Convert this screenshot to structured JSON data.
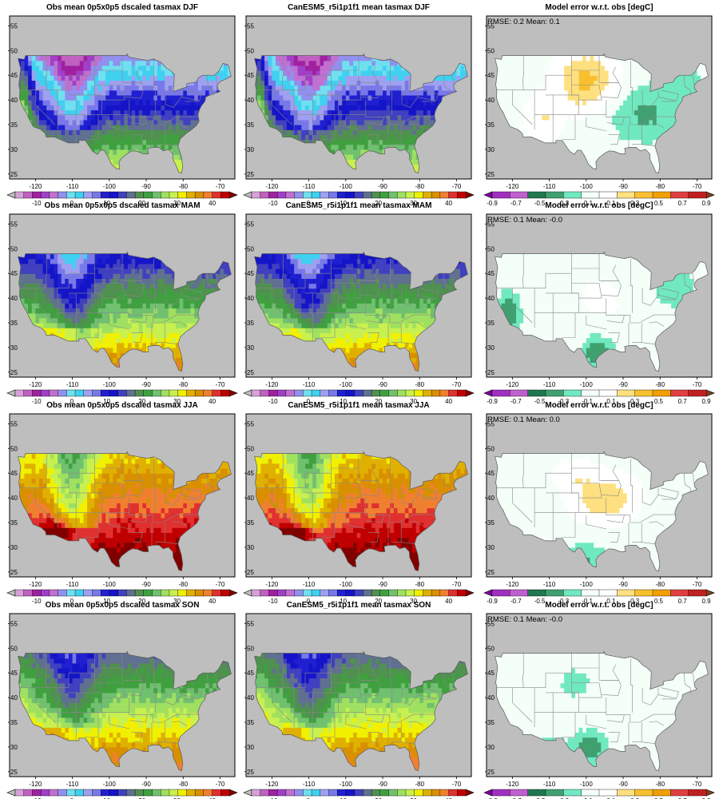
{
  "figure": {
    "rows": [
      {
        "season": "DJF",
        "panels": [
          {
            "kind": "abs",
            "title": "Obs mean 0p5x0p5 dscaled tasmax DJF"
          },
          {
            "kind": "abs",
            "title": "CanESM5_r5i1p1f1 mean tasmax DJF"
          },
          {
            "kind": "diff",
            "title": "Model error w.r.t. obs [degC]",
            "stats": "RMSE: 0.2  Mean: 0.1"
          }
        ]
      },
      {
        "season": "MAM",
        "panels": [
          {
            "kind": "abs",
            "title": "Obs mean 0p5x0p5 dscaled tasmax MAM"
          },
          {
            "kind": "abs",
            "title": "CanESM5_r5i1p1f1 mean tasmax MAM"
          },
          {
            "kind": "diff",
            "title": "Model error w.r.t. obs [degC]",
            "stats": "RMSE: 0.1  Mean: -0.0"
          }
        ]
      },
      {
        "season": "JJA",
        "panels": [
          {
            "kind": "abs",
            "title": "Obs mean 0p5x0p5 dscaled tasmax JJA"
          },
          {
            "kind": "abs",
            "title": "CanESM5_r5i1p1f1 mean tasmax JJA"
          },
          {
            "kind": "diff",
            "title": "Model error w.r.t. obs [degC]",
            "stats": "RMSE: 0.1  Mean: 0.0"
          }
        ]
      },
      {
        "season": "SON",
        "panels": [
          {
            "kind": "abs",
            "title": "Obs mean 0p5x0p5 dscaled tasmax SON"
          },
          {
            "kind": "abs",
            "title": "CanESM5_r5i1p1f1 mean tasmax SON"
          },
          {
            "kind": "diff",
            "title": "Model error w.r.t. obs [degC]",
            "stats": "RMSE: 0.1  Mean: -0.0"
          }
        ]
      }
    ],
    "map_axes": {
      "lon_range": [
        -127,
        -66
      ],
      "lat_range": [
        24,
        57
      ],
      "x_ticks": [
        "-120",
        "-110",
        "-100",
        "-90",
        "-80",
        "-70"
      ],
      "y_ticks": [
        "25",
        "30",
        "35",
        "40",
        "45",
        "50",
        "55"
      ]
    },
    "abs_colorbar": {
      "labels": [
        "-10",
        "0",
        "10",
        "20",
        "30",
        "40"
      ],
      "colors": [
        "#bdbdbd",
        "#d8a0d8",
        "#c060c0",
        "#a020a0",
        "#a040c8",
        "#c070d0",
        "#9090ee",
        "#70e0f0",
        "#40d0f0",
        "#a0a0f0",
        "#7878e8",
        "#2020d0",
        "#1414c8",
        "#4040c0",
        "#607090",
        "#509050",
        "#40a040",
        "#70c070",
        "#a0e060",
        "#c8f050",
        "#f0f000",
        "#e0b000",
        "#d89000",
        "#f08030",
        "#e03030",
        "#c00000",
        "#800000"
      ]
    },
    "diff_colorbar": {
      "labels": [
        "-0.9",
        "-0.7",
        "-0.5",
        "-0.3",
        "-0.1",
        "0.1",
        "0.3",
        "0.5",
        "0.7",
        "0.9"
      ],
      "colors": [
        "#8000a0",
        "#a030c0",
        "#c060d0",
        "#207850",
        "#40a070",
        "#70e8c0",
        "#f4fff8",
        "#ffffff",
        "#ffe080",
        "#f8c030",
        "#f0a000",
        "#e04040",
        "#c02020",
        "#804020"
      ]
    },
    "colors": {
      "land_missing": "#bebebe",
      "frame": "#000000",
      "state_lines": "#888888"
    }
  },
  "chart_data": [
    {
      "type": "heatmap",
      "title": "Obs mean 0p5x0p5 dscaled tasmax DJF",
      "xlim": [
        -127,
        -66
      ],
      "ylim": [
        24,
        57
      ]
    },
    {
      "type": "heatmap",
      "title": "CanESM5_r5i1p1f1 mean tasmax DJF",
      "xlim": [
        -127,
        -66
      ],
      "ylim": [
        24,
        57
      ]
    },
    {
      "type": "heatmap",
      "title": "Model error w.r.t. obs [degC]",
      "annotation": "RMSE: 0.2  Mean: 0.1",
      "xlim": [
        -127,
        -66
      ],
      "ylim": [
        24,
        57
      ]
    },
    {
      "type": "heatmap",
      "title": "Obs mean 0p5x0p5 dscaled tasmax MAM",
      "xlim": [
        -127,
        -66
      ],
      "ylim": [
        24,
        57
      ]
    },
    {
      "type": "heatmap",
      "title": "CanESM5_r5i1p1f1 mean tasmax MAM",
      "xlim": [
        -127,
        -66
      ],
      "ylim": [
        24,
        57
      ]
    },
    {
      "type": "heatmap",
      "title": "Model error w.r.t. obs [degC]",
      "annotation": "RMSE: 0.1  Mean: -0.0",
      "xlim": [
        -127,
        -66
      ],
      "ylim": [
        24,
        57
      ]
    },
    {
      "type": "heatmap",
      "title": "Obs mean 0p5x0p5 dscaled tasmax JJA",
      "xlim": [
        -127,
        -66
      ],
      "ylim": [
        24,
        57
      ]
    },
    {
      "type": "heatmap",
      "title": "CanESM5_r5i1p1f1 mean tasmax JJA",
      "xlim": [
        -127,
        -66
      ],
      "ylim": [
        24,
        57
      ]
    },
    {
      "type": "heatmap",
      "title": "Model error w.r.t. obs [degC]",
      "annotation": "RMSE: 0.1  Mean: 0.0",
      "xlim": [
        -127,
        -66
      ],
      "ylim": [
        24,
        57
      ]
    },
    {
      "type": "heatmap",
      "title": "Obs mean 0p5x0p5 dscaled tasmax SON",
      "xlim": [
        -127,
        -66
      ],
      "ylim": [
        24,
        57
      ]
    },
    {
      "type": "heatmap",
      "title": "CanESM5_r5i1p1f1 mean tasmax SON",
      "xlim": [
        -127,
        -66
      ],
      "ylim": [
        24,
        57
      ]
    },
    {
      "type": "heatmap",
      "title": "Model error w.r.t. obs [degC]",
      "annotation": "RMSE: 0.1  Mean: -0.0",
      "xlim": [
        -127,
        -66
      ],
      "ylim": [
        24,
        57
      ]
    }
  ]
}
